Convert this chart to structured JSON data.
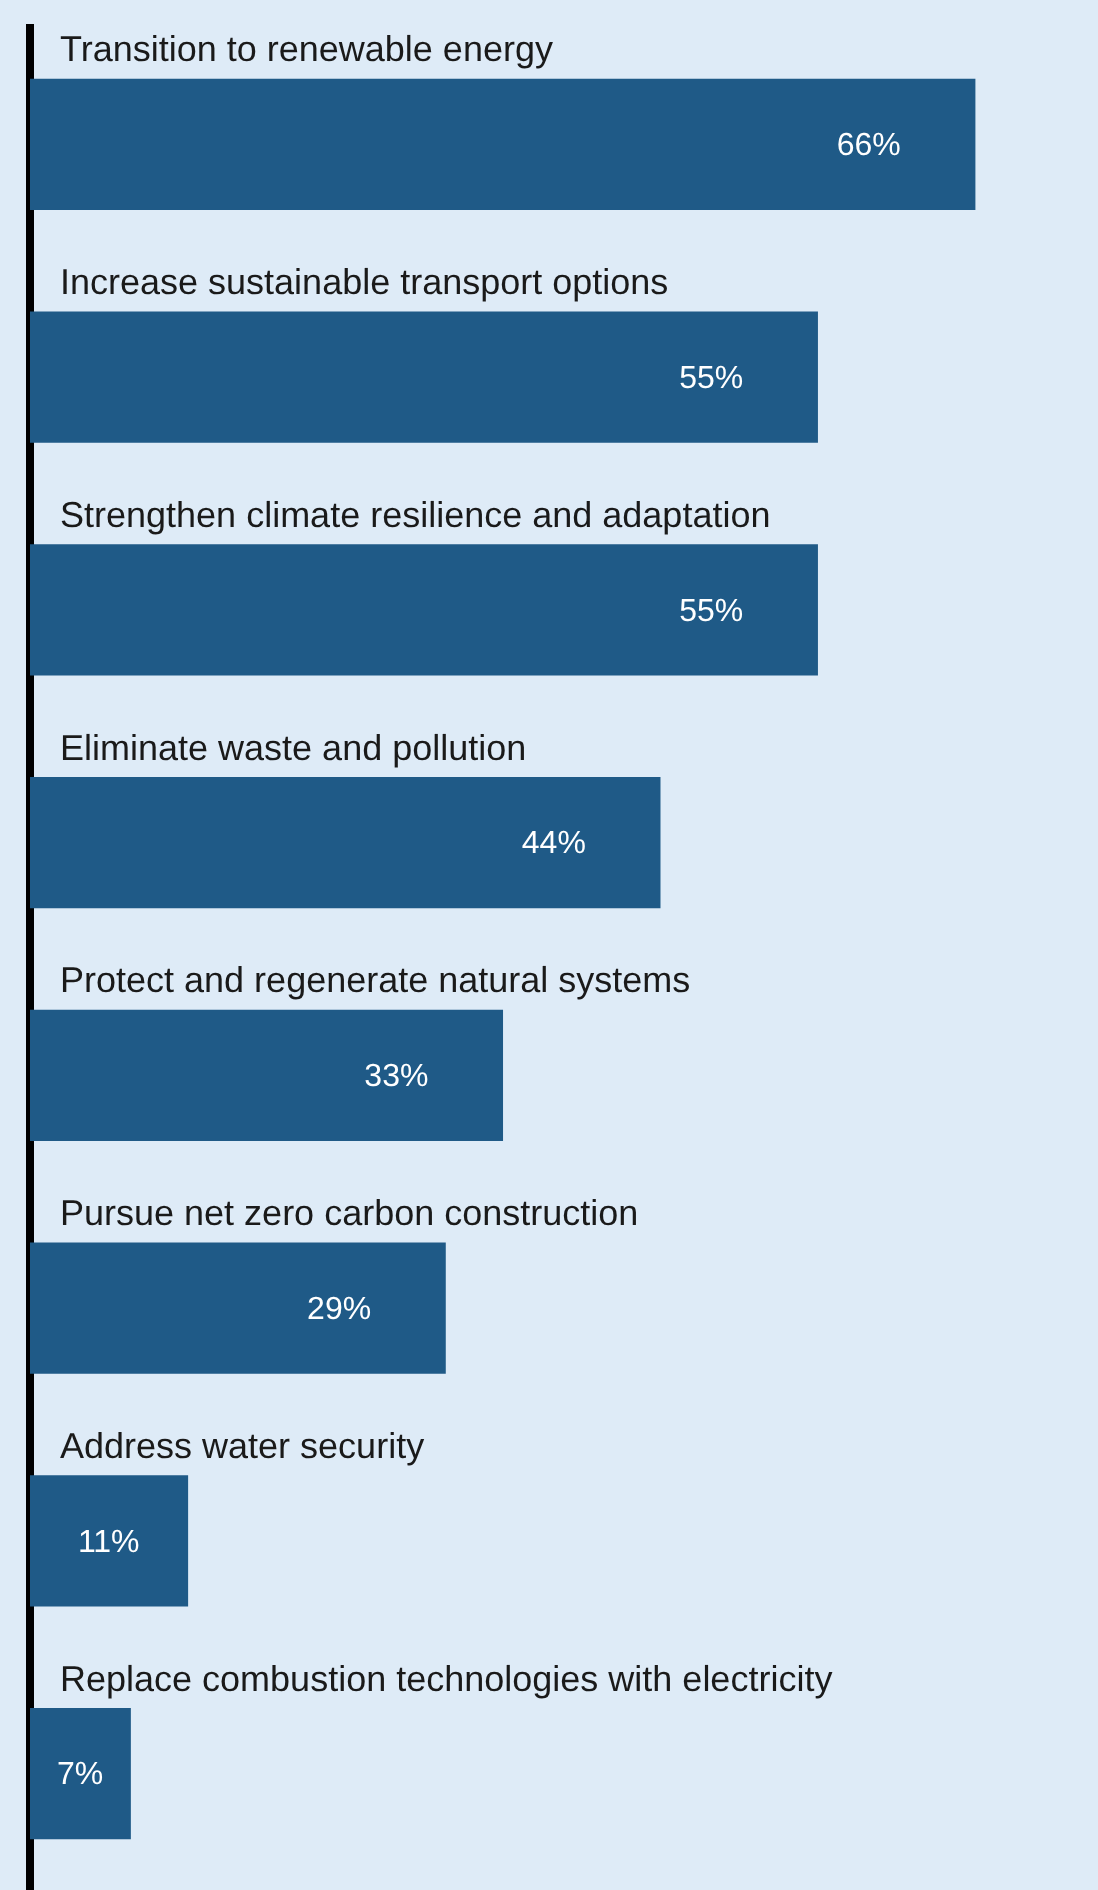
{
  "chart_data": {
    "type": "bar",
    "orientation": "horizontal",
    "categories": [
      "Transition to renewable energy",
      "Increase sustainable transport options",
      "Strengthen climate resilience and adaptation",
      "Eliminate waste and pollution",
      "Protect and regenerate natural systems",
      "Pursue net zero carbon construction",
      "Address water security",
      "Replace combustion technologies with electricity"
    ],
    "values": [
      66,
      55,
      55,
      44,
      33,
      29,
      11,
      7
    ],
    "value_labels": [
      "66%",
      "55%",
      "55%",
      "44%",
      "33%",
      "29%",
      "11%",
      "7%"
    ],
    "color": "#1f5a87",
    "tick_labels": false
  }
}
